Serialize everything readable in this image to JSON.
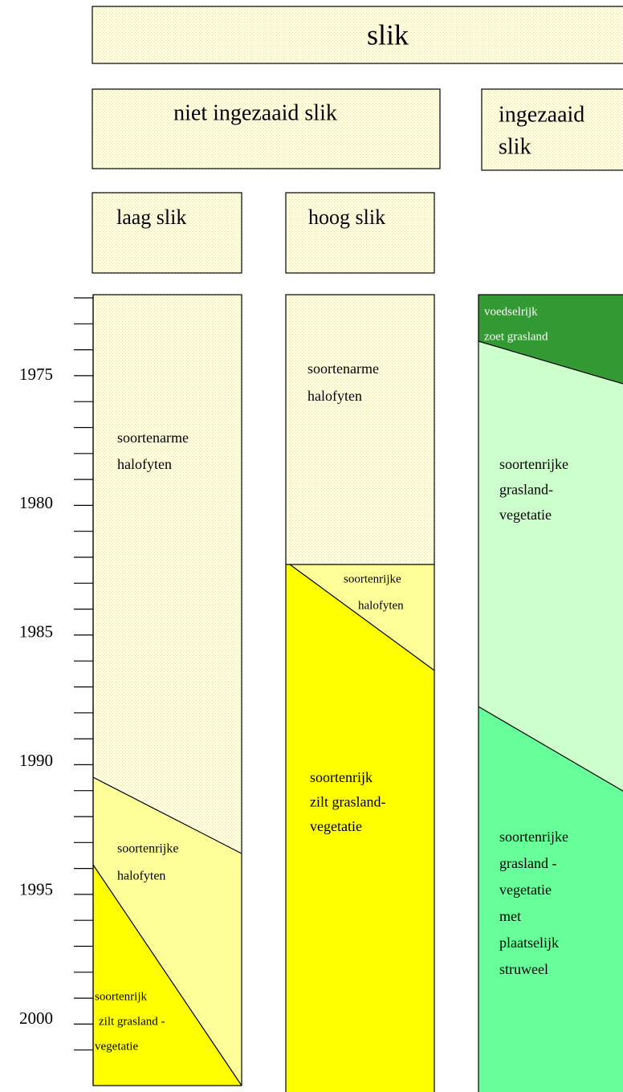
{
  "header": {
    "title": "slik"
  },
  "groups": [
    {
      "label": [
        "niet ingezaaid slik"
      ]
    },
    {
      "label": [
        "ingezaaid",
        "slik"
      ]
    }
  ],
  "subgroups": [
    {
      "label": [
        "laag slik"
      ]
    },
    {
      "label": [
        "hoog slik"
      ]
    }
  ],
  "years": [
    "1975",
    "1980",
    "1985",
    "1990",
    "1995",
    "2000"
  ],
  "columns": [
    {
      "zones": [
        {
          "label": [
            "soortenarme",
            "halofyten"
          ]
        },
        {
          "label": [
            "soortenrijke",
            "halofyten"
          ]
        },
        {
          "label": [
            "soortenrijk",
            "zilt grasland -",
            "vegetatie"
          ]
        }
      ]
    },
    {
      "zones": [
        {
          "label": [
            "soortenarme",
            "halofyten"
          ]
        },
        {
          "label": [
            "soortenrijke",
            "halofyten"
          ]
        },
        {
          "label": [
            "soortenrijk",
            "zilt grasland-",
            "vegetatie"
          ]
        }
      ]
    },
    {
      "zones": [
        {
          "label": [
            "voedselrijk",
            "zoet grasland"
          ]
        },
        {
          "label": [
            "soortenrijke",
            "grasland-",
            "vegetatie"
          ]
        },
        {
          "label": [
            "soortenrijke",
            "grasland -",
            "vegetatie",
            "met",
            "plaatselijk",
            "struweel"
          ]
        }
      ]
    }
  ]
}
